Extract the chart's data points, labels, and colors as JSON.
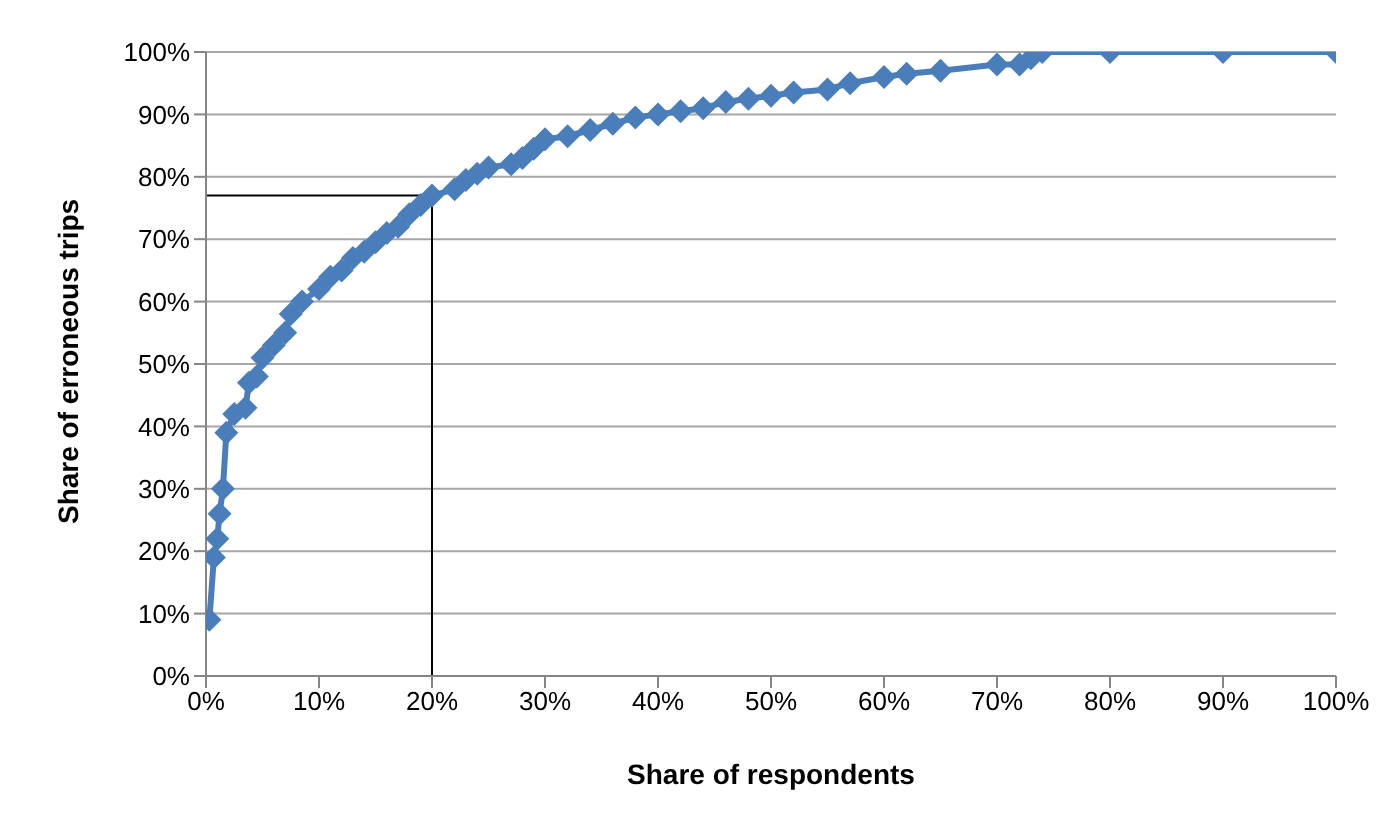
{
  "chart_data": {
    "type": "line",
    "xlabel": "Share of respondents",
    "ylabel": "Share of erroneous trips",
    "x": [
      0.3,
      0.7,
      1,
      1.2,
      1.5,
      1.8,
      2.5,
      3.5,
      3.8,
      4.5,
      5,
      6,
      7,
      7.5,
      8.5,
      10,
      11,
      12,
      13,
      14,
      15,
      16,
      17,
      18,
      19,
      20,
      22,
      23,
      24,
      25,
      27,
      28,
      29,
      30,
      32,
      34,
      36,
      38,
      40,
      42,
      44,
      46,
      48,
      50,
      52,
      55,
      57,
      60,
      62,
      65,
      70,
      72,
      73,
      74,
      80,
      90,
      100
    ],
    "series": [
      {
        "color": "#4a7ebb",
        "values": [
          9,
          19,
          22,
          26,
          30,
          39,
          42,
          43,
          47,
          48,
          51,
          53,
          55,
          58,
          60,
          62,
          64,
          65,
          67,
          68,
          69.5,
          71,
          72,
          74,
          75.5,
          77,
          78,
          79.5,
          80.5,
          81.5,
          82,
          83,
          84.5,
          86,
          86.5,
          87.5,
          88.5,
          89.5,
          90,
          90.5,
          91,
          92,
          92.5,
          93,
          93.5,
          94,
          95,
          96,
          96.5,
          97,
          98,
          98,
          99,
          100,
          100,
          100,
          100
        ]
      }
    ],
    "xlim": [
      0,
      100
    ],
    "ylim": [
      0,
      100
    ],
    "xticks": [
      {
        "value": 0,
        "label": "0%"
      },
      {
        "value": 10,
        "label": "10%"
      },
      {
        "value": 20,
        "label": "20%"
      },
      {
        "value": 30,
        "label": "30%"
      },
      {
        "value": 40,
        "label": "40%"
      },
      {
        "value": 50,
        "label": "50%"
      },
      {
        "value": 60,
        "label": "60%"
      },
      {
        "value": 70,
        "label": "70%"
      },
      {
        "value": 80,
        "label": "80%"
      },
      {
        "value": 90,
        "label": "90%"
      },
      {
        "value": 100,
        "label": "100%"
      }
    ],
    "yticks": [
      {
        "value": 0,
        "label": "0%"
      },
      {
        "value": 10,
        "label": "10%"
      },
      {
        "value": 20,
        "label": "20%"
      },
      {
        "value": 30,
        "label": "30%"
      },
      {
        "value": 40,
        "label": "40%"
      },
      {
        "value": 50,
        "label": "50%"
      },
      {
        "value": 60,
        "label": "60%"
      },
      {
        "value": 70,
        "label": "70%"
      },
      {
        "value": 80,
        "label": "80%"
      },
      {
        "value": 90,
        "label": "90%"
      },
      {
        "value": 100,
        "label": "100%"
      }
    ],
    "ref_lines": [
      {
        "axis": "x",
        "value": 20,
        "color": "#000000"
      },
      {
        "axis": "y",
        "value": 77,
        "color": "#000000"
      }
    ],
    "grid": "y",
    "legend": false,
    "marker": "diamond",
    "line_style": "solid"
  }
}
